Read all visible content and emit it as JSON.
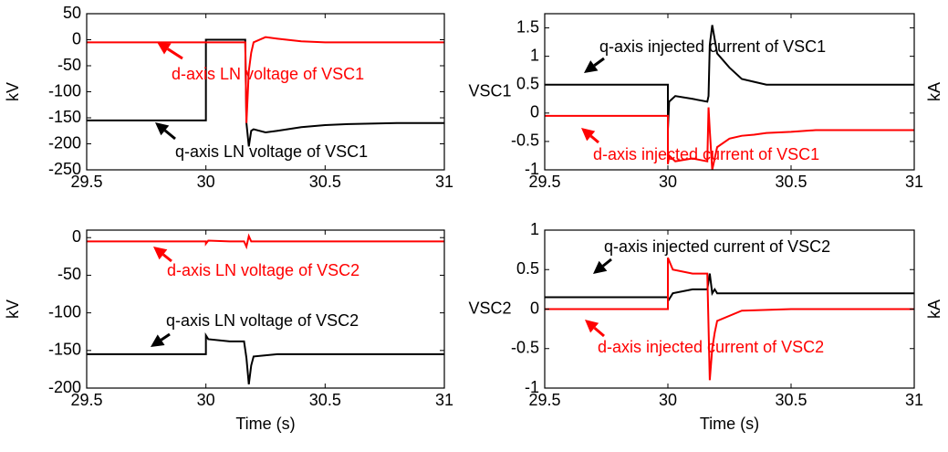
{
  "chart_data": [
    {
      "type": "line",
      "ylabel": "kV",
      "x": [
        29.5,
        29.6,
        29.7,
        29.8,
        29.9,
        30,
        30,
        30.1,
        30.16,
        30.165,
        30.17,
        30.18,
        30.19,
        30.2,
        30.25,
        30.3,
        30.4,
        30.5,
        30.6,
        30.8,
        31
      ],
      "series": [
        {
          "color": "#000000",
          "values": [
            -155,
            -155,
            -155,
            -155,
            -155,
            -155,
            0,
            0,
            0,
            0,
            -160,
            -205,
            -175,
            -172,
            -178,
            -175,
            -168,
            -164,
            -162,
            -160,
            -160
          ]
        },
        {
          "color": "#ff0000",
          "values": [
            -5,
            -5,
            -5,
            -5,
            -5,
            -5,
            -5,
            -5,
            -5,
            -5,
            -160,
            -60,
            -25,
            -5,
            5,
            2,
            -3,
            -5,
            -5,
            -5,
            -5
          ]
        }
      ],
      "annotations": [
        {
          "text": "d-axis LN voltage of VSC1",
          "color": "#ff0000"
        },
        {
          "text": "q-axis LN voltage of VSC1",
          "color": "#000000"
        }
      ],
      "xlim": [
        29.5,
        31
      ],
      "xticks": [
        29.5,
        30,
        30.5,
        31
      ],
      "ylim": [
        -250,
        50
      ],
      "yticks": [
        50,
        0,
        -50,
        -100,
        -150,
        -200,
        -250
      ]
    },
    {
      "type": "line",
      "ylabel": "VSC1",
      "right_label": "kA",
      "x": [
        29.5,
        29.6,
        29.7,
        29.8,
        29.9,
        30,
        30,
        30.005,
        30.03,
        30.1,
        30.16,
        30.165,
        30.17,
        30.18,
        30.2,
        30.25,
        30.3,
        30.35,
        30.4,
        30.5,
        30.6,
        30.8,
        31
      ],
      "series": [
        {
          "color": "#000000",
          "values": [
            0.5,
            0.5,
            0.5,
            0.5,
            0.5,
            0.5,
            -0.3,
            0.2,
            0.3,
            0.25,
            0.2,
            0.3,
            1.2,
            1.55,
            1.05,
            0.8,
            0.6,
            0.55,
            0.5,
            0.5,
            0.5,
            0.5,
            0.5
          ]
        },
        {
          "color": "#ff0000",
          "values": [
            -0.05,
            -0.05,
            -0.05,
            -0.05,
            -0.05,
            -0.05,
            -0.9,
            -0.75,
            -0.85,
            -0.8,
            -0.85,
            0.1,
            -0.3,
            -1,
            -0.6,
            -0.45,
            -0.4,
            -0.38,
            -0.35,
            -0.33,
            -0.3,
            -0.3,
            -0.3
          ]
        }
      ],
      "annotations": [
        {
          "text": "q-axis injected current of VSC1",
          "color": "#000000"
        },
        {
          "text": "d-axis injected current of VSC1",
          "color": "#ff0000"
        }
      ],
      "xlim": [
        29.5,
        31
      ],
      "xticks": [
        29.5,
        30,
        30.5,
        31
      ],
      "ylim": [
        -1,
        1.75
      ],
      "yticks": [
        1.5,
        1,
        0.5,
        0,
        -0.5,
        -1
      ]
    },
    {
      "type": "line",
      "ylabel": "kV",
      "xlabel": "Time (s)",
      "x": [
        29.5,
        29.7,
        29.9,
        30,
        30,
        30.01,
        30.1,
        30.16,
        30.17,
        30.18,
        30.19,
        30.2,
        30.3,
        30.5,
        31
      ],
      "series": [
        {
          "color": "#000000",
          "values": [
            -155,
            -155,
            -155,
            -155,
            -130,
            -135,
            -138,
            -138,
            -160,
            -195,
            -170,
            -158,
            -155,
            -155,
            -155
          ]
        },
        {
          "color": "#ff0000",
          "values": [
            -5,
            -5,
            -5,
            -5,
            -8,
            -4,
            -5,
            -5,
            -12,
            2,
            -5,
            -5,
            -5,
            -5,
            -5
          ]
        }
      ],
      "annotations": [
        {
          "text": "d-axis LN voltage of VSC2",
          "color": "#ff0000"
        },
        {
          "text": "q-axis LN voltage of VSC2",
          "color": "#000000"
        }
      ],
      "xlim": [
        29.5,
        31
      ],
      "xticks": [
        29.5,
        30,
        30.5,
        31
      ],
      "ylim": [
        -200,
        10
      ],
      "yticks": [
        0,
        -50,
        -100,
        -150,
        -200
      ]
    },
    {
      "type": "line",
      "ylabel": "VSC2",
      "right_label": "kA",
      "xlabel": "Time (s)",
      "x": [
        29.5,
        29.7,
        29.9,
        30,
        30,
        30.02,
        30.1,
        30.16,
        30.17,
        30.18,
        30.19,
        30.2,
        30.3,
        30.5,
        31
      ],
      "series": [
        {
          "color": "#000000",
          "values": [
            0.15,
            0.15,
            0.15,
            0.15,
            0.1,
            0.2,
            0.25,
            0.25,
            0.45,
            0.2,
            0.25,
            0.2,
            0.2,
            0.2,
            0.2
          ]
        },
        {
          "color": "#ff0000",
          "values": [
            0,
            0,
            0,
            0,
            0.65,
            0.5,
            0.45,
            0.45,
            -0.9,
            -0.5,
            -0.3,
            -0.15,
            -0.02,
            0,
            0
          ]
        }
      ],
      "annotations": [
        {
          "text": "q-axis injected current of VSC2",
          "color": "#000000"
        },
        {
          "text": "d-axis injected current of VSC2",
          "color": "#ff0000"
        }
      ],
      "xlim": [
        29.5,
        31
      ],
      "xticks": [
        29.5,
        30,
        30.5,
        31
      ],
      "ylim": [
        -1,
        1
      ],
      "yticks": [
        1,
        0.5,
        0,
        -0.5,
        -1
      ]
    }
  ]
}
